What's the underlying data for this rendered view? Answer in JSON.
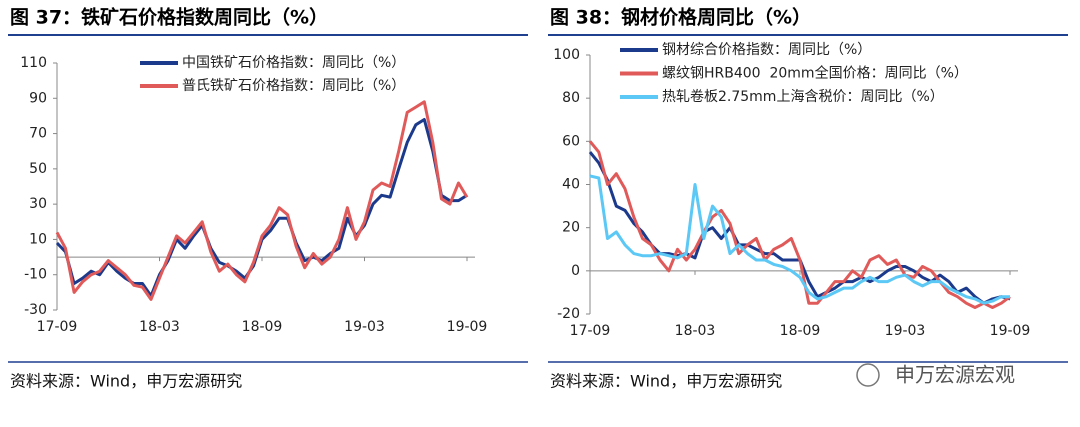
{
  "chart_data": [
    {
      "type": "line",
      "title": "图 37：铁矿石价格指数周同比（%）",
      "source": "资料来源：Wind，申万宏源研究",
      "categories": [
        "17-09",
        null,
        null,
        null,
        null,
        null,
        null,
        null,
        null,
        null,
        null,
        null,
        "18-03",
        null,
        null,
        null,
        null,
        null,
        null,
        null,
        null,
        null,
        null,
        null,
        "18-09",
        null,
        null,
        null,
        null,
        null,
        null,
        null,
        null,
        null,
        null,
        null,
        "19-03",
        null,
        null,
        null,
        null,
        null,
        null,
        null,
        null,
        null,
        null,
        null,
        "19-09"
      ],
      "ylim": [
        -30,
        110
      ],
      "yticks": [
        -30,
        -10,
        10,
        30,
        50,
        70,
        90,
        110
      ],
      "legend": "upper center",
      "series": [
        {
          "name": "中国铁矿石价格指数：周同比（%）",
          "color": "#1c3a8c",
          "values": [
            8,
            3,
            -15,
            -12,
            -8,
            -10,
            -3,
            -8,
            -12,
            -15,
            -15,
            -22,
            -10,
            -2,
            10,
            5,
            12,
            18,
            5,
            -3,
            -5,
            -8,
            -12,
            -5,
            10,
            15,
            22,
            22,
            8,
            -2,
            0,
            -2,
            2,
            5,
            22,
            12,
            18,
            30,
            35,
            34,
            50,
            65,
            75,
            78,
            60,
            35,
            32,
            32,
            35
          ]
        },
        {
          "name": "普氏铁矿石价格指数：周同比（%）",
          "color": "#e05a5a",
          "values": [
            14,
            5,
            -20,
            -14,
            -10,
            -8,
            -2,
            -6,
            -10,
            -16,
            -17,
            -24,
            -12,
            0,
            12,
            8,
            14,
            20,
            3,
            -8,
            -4,
            -10,
            -14,
            -3,
            12,
            18,
            28,
            24,
            6,
            -6,
            2,
            -4,
            0,
            10,
            28,
            10,
            20,
            38,
            42,
            40,
            60,
            82,
            85,
            88,
            65,
            33,
            30,
            42,
            34
          ]
        }
      ]
    },
    {
      "type": "line",
      "title": "图 38：钢材价格周同比（%）",
      "source": "资料来源：Wind，申万宏源研究",
      "categories": [
        "17-09",
        null,
        null,
        null,
        null,
        null,
        null,
        null,
        null,
        null,
        null,
        null,
        "18-03",
        null,
        null,
        null,
        null,
        null,
        null,
        null,
        null,
        null,
        null,
        null,
        "18-09",
        null,
        null,
        null,
        null,
        null,
        null,
        null,
        null,
        null,
        null,
        null,
        "19-03",
        null,
        null,
        null,
        null,
        null,
        null,
        null,
        null,
        null,
        null,
        null,
        "19-09"
      ],
      "ylim": [
        -20,
        100
      ],
      "yticks": [
        -20,
        0,
        20,
        40,
        60,
        80,
        100
      ],
      "legend": "upper left",
      "series": [
        {
          "name": "钢材综合价格指数：周同比（%）",
          "color": "#1c3a8c",
          "values": [
            55,
            50,
            42,
            30,
            28,
            22,
            18,
            12,
            8,
            8,
            7,
            8,
            6,
            18,
            20,
            15,
            20,
            12,
            12,
            10,
            8,
            8,
            5,
            5,
            5,
            -5,
            -12,
            -10,
            -8,
            -5,
            -5,
            -3,
            -5,
            -3,
            0,
            2,
            2,
            0,
            -3,
            -5,
            -2,
            -5,
            -10,
            -8,
            -12,
            -15,
            -13,
            -12,
            -13
          ]
        },
        {
          "name": "螺纹钢HRB400  20mm全国价格：周同比（%）",
          "color": "#e05a5a",
          "values": [
            60,
            55,
            40,
            45,
            38,
            25,
            15,
            12,
            5,
            0,
            10,
            5,
            10,
            18,
            25,
            28,
            22,
            8,
            12,
            15,
            5,
            10,
            12,
            15,
            5,
            -15,
            -15,
            -10,
            -5,
            -5,
            0,
            -3,
            5,
            7,
            3,
            5,
            -2,
            -3,
            2,
            0,
            -5,
            -10,
            -12,
            -15,
            -17,
            -15,
            -17,
            -15,
            -12
          ]
        },
        {
          "name": "热轧卷板2.75mm上海含税价：周同比（%）",
          "color": "#5bc8f5",
          "values": [
            44,
            43,
            15,
            18,
            12,
            8,
            7,
            7,
            8,
            7,
            6,
            8,
            40,
            15,
            30,
            25,
            8,
            12,
            8,
            5,
            5,
            3,
            2,
            0,
            -3,
            -10,
            -13,
            -12,
            -10,
            -8,
            -8,
            -5,
            -3,
            -5,
            -5,
            -3,
            -2,
            -5,
            -7,
            -5,
            -5,
            -8,
            -10,
            -12,
            -13,
            -15,
            -14,
            -12,
            -12
          ]
        }
      ]
    }
  ],
  "watermark": "申万宏源宏观"
}
